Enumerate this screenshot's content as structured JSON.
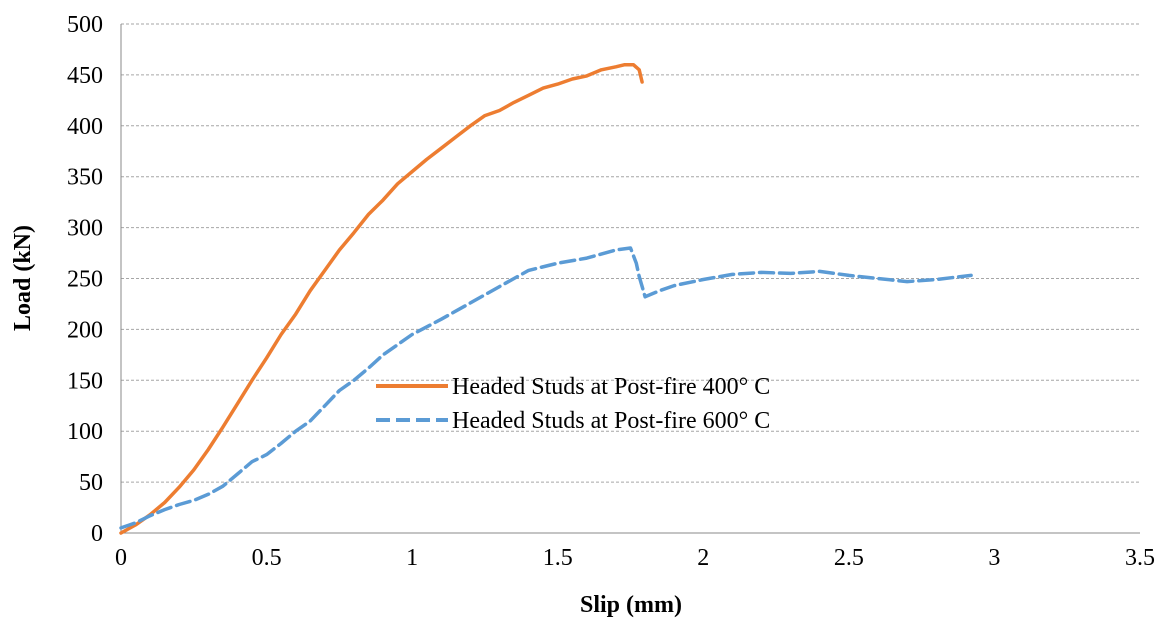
{
  "chart_data": {
    "type": "line",
    "title": "",
    "xlabel": "Slip (mm)",
    "ylabel": "Load (kN)",
    "xlim": [
      0,
      3.5
    ],
    "ylim": [
      0,
      500
    ],
    "x_ticks": [
      0,
      0.5,
      1,
      1.5,
      2,
      2.5,
      3,
      3.5
    ],
    "x_tick_labels": [
      "0",
      "0.5",
      "1",
      "1.5",
      "2",
      "2.5",
      "3",
      "3.5"
    ],
    "y_ticks": [
      0,
      50,
      100,
      150,
      200,
      250,
      300,
      350,
      400,
      450,
      500
    ],
    "y_tick_labels": [
      "0",
      "50",
      "100",
      "150",
      "200",
      "250",
      "300",
      "350",
      "400",
      "450",
      "500"
    ],
    "grid": "horizontal dashed",
    "legend_position": "center",
    "series": [
      {
        "name": "Headed Studs at Post-fire 400° C",
        "color": "#ED7D31",
        "style": "solid",
        "x": [
          0,
          0.05,
          0.1,
          0.15,
          0.2,
          0.25,
          0.3,
          0.35,
          0.4,
          0.45,
          0.5,
          0.55,
          0.6,
          0.65,
          0.7,
          0.75,
          0.8,
          0.85,
          0.9,
          0.95,
          1.0,
          1.05,
          1.1,
          1.15,
          1.2,
          1.25,
          1.3,
          1.35,
          1.4,
          1.45,
          1.5,
          1.55,
          1.6,
          1.65,
          1.7,
          1.73,
          1.76,
          1.78,
          1.79
        ],
        "y": [
          0,
          8,
          18,
          30,
          45,
          62,
          82,
          104,
          127,
          150,
          172,
          195,
          215,
          238,
          258,
          278,
          295,
          313,
          327,
          343,
          355,
          367,
          378,
          389,
          400,
          410,
          415,
          423,
          430,
          437,
          441,
          446,
          449,
          455,
          458,
          460,
          460,
          455,
          443
        ]
      },
      {
        "name": "Headed Studs at Post-fire 600° C",
        "color": "#5B9BD5",
        "style": "dashed",
        "x": [
          0,
          0.05,
          0.1,
          0.15,
          0.2,
          0.25,
          0.3,
          0.35,
          0.4,
          0.45,
          0.5,
          0.55,
          0.6,
          0.65,
          0.7,
          0.75,
          0.8,
          0.85,
          0.9,
          0.95,
          1.0,
          1.1,
          1.2,
          1.3,
          1.4,
          1.5,
          1.6,
          1.7,
          1.75,
          1.77,
          1.78,
          1.8,
          1.85,
          1.9,
          2.0,
          2.1,
          2.2,
          2.3,
          2.4,
          2.5,
          2.6,
          2.7,
          2.8,
          2.92
        ],
        "y": [
          5,
          10,
          17,
          23,
          28,
          32,
          38,
          46,
          58,
          70,
          77,
          88,
          100,
          110,
          125,
          140,
          150,
          162,
          175,
          185,
          195,
          210,
          226,
          242,
          258,
          265,
          270,
          278,
          280,
          265,
          252,
          232,
          238,
          243,
          249,
          254,
          256,
          255,
          257,
          253,
          250,
          247,
          249,
          253
        ]
      }
    ]
  }
}
